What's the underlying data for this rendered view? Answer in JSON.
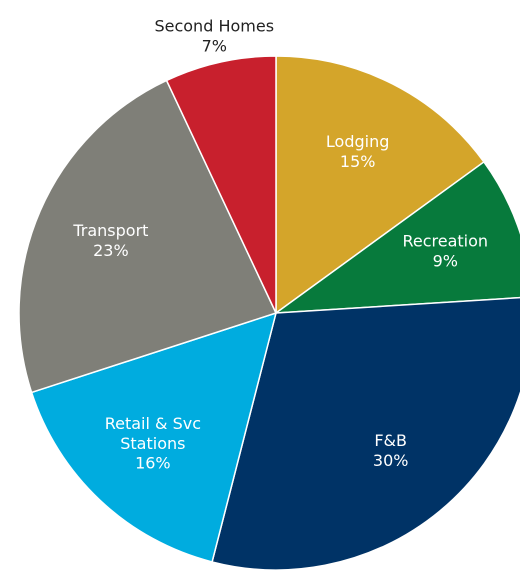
{
  "chart_data": {
    "type": "pie",
    "categories": [
      "Lodging",
      "Recreation",
      "F&B",
      "Retail & Svc Stations",
      "Transport",
      "Second Homes"
    ],
    "values": [
      15,
      9,
      30,
      16,
      23,
      7
    ],
    "value_labels": [
      "15%",
      "9%",
      "30%",
      "16%",
      "23%",
      "7%"
    ],
    "colors": [
      "#d4a52a",
      "#077a3c",
      "#003366",
      "#00acdf",
      "#7f7f78",
      "#c8202d"
    ]
  }
}
